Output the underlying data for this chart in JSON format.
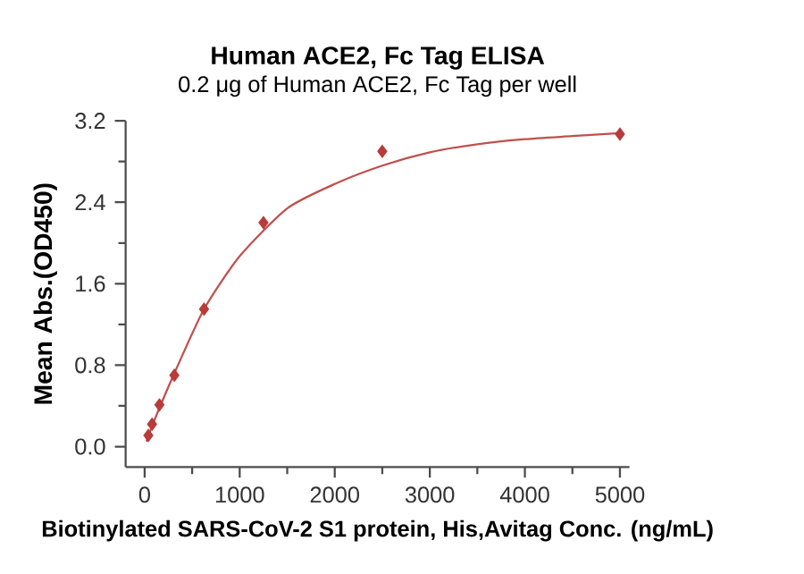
{
  "chart_data": {
    "type": "scatter",
    "title": "Human ACE2, Fc Tag ELISA",
    "subtitle": "0.2 μg of Human ACE2, Fc Tag per well",
    "xlabel": "Biotinylated SARS-CoV-2 S1 protein, His,Avitag Conc. (ng/mL)",
    "ylabel": "Mean Abs.(OD450)",
    "series": [
      {
        "color": "#b83a3a",
        "marker": "diamond",
        "x": [
          39,
          78,
          156,
          312.5,
          625,
          1250,
          2500,
          5000
        ],
        "values": [
          0.11,
          0.22,
          0.41,
          0.7,
          1.35,
          2.2,
          2.9,
          3.07
        ]
      },
      {
        "type": "line",
        "color": "#c0504d",
        "x": [
          20,
          39,
          78,
          156,
          312.5,
          625,
          1000,
          1500,
          2000,
          2500,
          3000,
          3500,
          4000,
          4500,
          5000
        ],
        "values": [
          0.05,
          0.11,
          0.2,
          0.38,
          0.72,
          1.35,
          1.87,
          2.34,
          2.58,
          2.76,
          2.89,
          2.97,
          3.02,
          3.05,
          3.08
        ]
      }
    ],
    "xlim": [
      -200,
      5100
    ],
    "ylim": [
      -0.2,
      3.2
    ],
    "xticks": [
      0,
      1000,
      2000,
      3000,
      4000,
      5000
    ],
    "yticks": [
      {
        "value": 0,
        "label": "0.0"
      },
      0.8,
      1.6,
      2.4,
      3.2
    ],
    "grid": false
  }
}
